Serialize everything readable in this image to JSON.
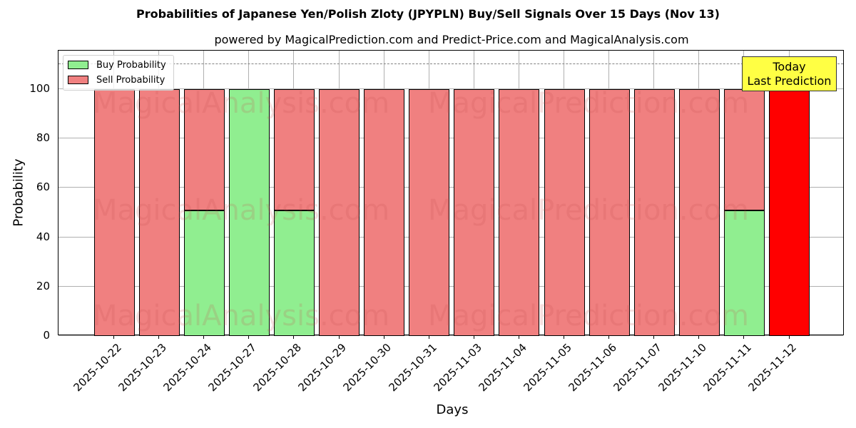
{
  "title": "Probabilities of Japanese Yen/Polish Zloty (JPYPLN) Buy/Sell Signals Over 15 Days (Nov 13)",
  "subtitle": "powered by MagicalPrediction.com and Predict-Price.com and MagicalAnalysis.com",
  "watermarks": [
    "MagicalAnalysis.com",
    "MagicalPrediction.com"
  ],
  "annotation": {
    "line1": "Today",
    "line2": "Last Prediction"
  },
  "colors": {
    "buy": "#90ee90",
    "sell": "#f08080",
    "today": "#ff0000",
    "annotation_bg": "#ffff44",
    "grid": "#b0b0b0",
    "dashed_line": "#808080"
  },
  "chart_data": {
    "type": "bar",
    "stacked": true,
    "title": "Probabilities of Japanese Yen/Polish Zloty (JPYPLN) Buy/Sell Signals Over 15 Days (Nov 13)",
    "subtitle": "powered by MagicalPrediction.com and Predict-Price.com and MagicalAnalysis.com",
    "xlabel": "Days",
    "ylabel": "Probability",
    "ylim": [
      0,
      115
    ],
    "yticks": [
      0,
      20,
      40,
      60,
      80,
      100
    ],
    "grid": true,
    "legend_position": "upper left",
    "reference_line": {
      "y": 110,
      "style": "dashed"
    },
    "categories": [
      "2025-10-22",
      "2025-10-23",
      "2025-10-24",
      "2025-10-27",
      "2025-10-28",
      "2025-10-29",
      "2025-10-30",
      "2025-10-31",
      "2025-11-03",
      "2025-11-04",
      "2025-11-05",
      "2025-11-06",
      "2025-11-07",
      "2025-11-10",
      "2025-11-11",
      "2025-11-12"
    ],
    "series": [
      {
        "name": "Buy Probability",
        "values": [
          0,
          0,
          51,
          100,
          51,
          0,
          0,
          0,
          0,
          0,
          0,
          0,
          0,
          0,
          51,
          0
        ]
      },
      {
        "name": "Sell Probability",
        "values": [
          100,
          100,
          49,
          0,
          49,
          100,
          100,
          100,
          100,
          100,
          100,
          100,
          100,
          100,
          49,
          100
        ]
      }
    ],
    "highlight": {
      "category": "2025-11-12",
      "label": "Today Last Prediction",
      "color": "#ff0000"
    }
  }
}
